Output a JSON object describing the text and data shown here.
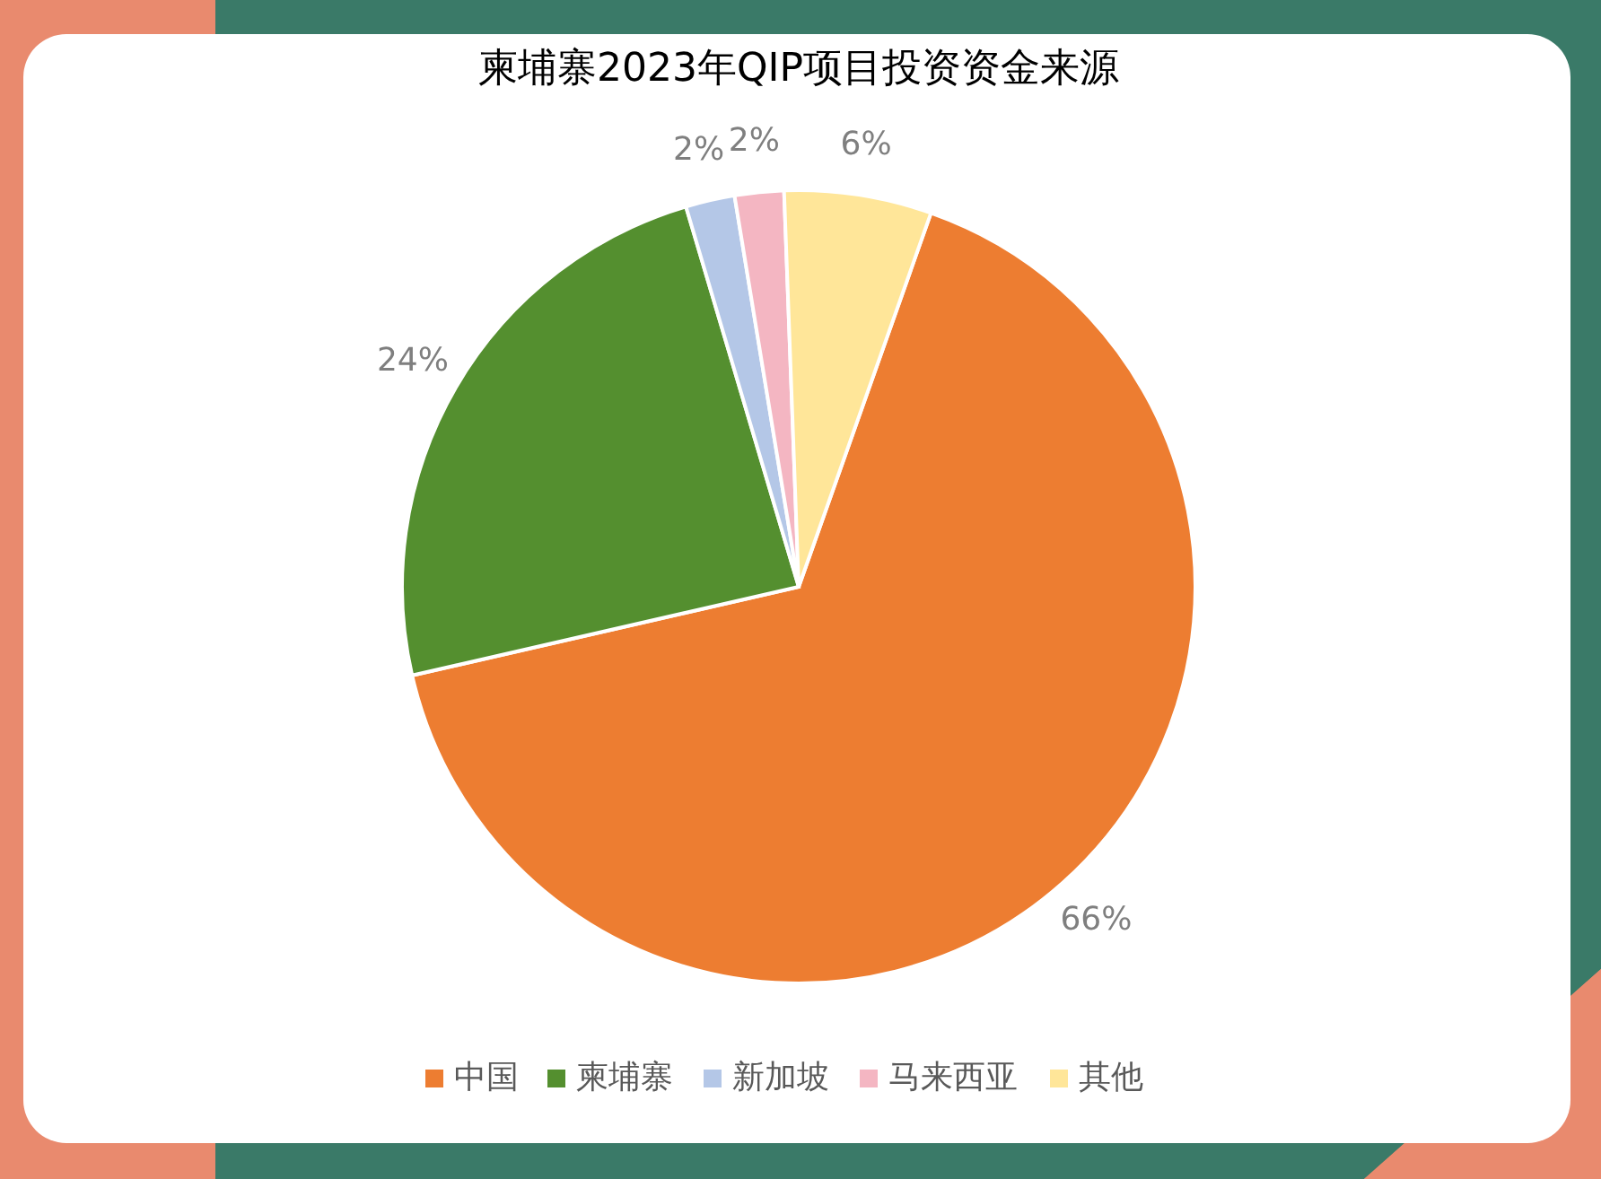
{
  "chart_data": {
    "type": "pie",
    "title": "柬埔寨2023年QIP项目投资资金来源",
    "categories": [
      "中国",
      "柬埔寨",
      "新加坡",
      "马来西亚",
      "其他"
    ],
    "values": [
      66,
      24,
      2,
      2,
      6
    ],
    "colors": [
      "#ed7d31",
      "#548f2f",
      "#b4c7e7",
      "#f4b6c2",
      "#ffe699"
    ],
    "value_labels": [
      "66%",
      "24%",
      "2%",
      "2%",
      "6%"
    ],
    "legend": "bottom"
  }
}
